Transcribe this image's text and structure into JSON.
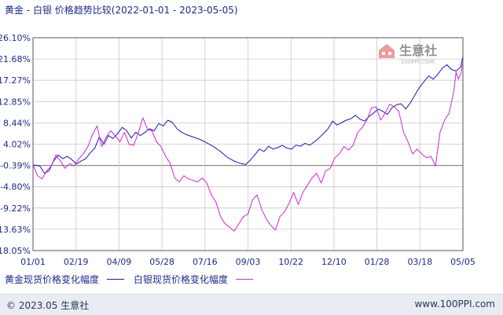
{
  "header": {
    "title": "黄金 - 白银 价格趋势比较(2022-01-01 - 2023-05-05)"
  },
  "watermark": {
    "cn": "生意社",
    "en": "100PPI.COM"
  },
  "legend": {
    "gold_label": "黄金现货价格变化幅度",
    "silver_label": "白银现货价格变化幅度"
  },
  "footer": {
    "copyright": "© 2023.05 生意社",
    "url": "www.100PPI.com"
  },
  "colors": {
    "gold": "#1a1aa8",
    "silver": "#d426d4",
    "grid": "#c8c8c8",
    "axis_text": "#1a2a8a"
  },
  "chart_data": {
    "type": "line",
    "x_tick_labels": [
      "01/01",
      "02/19",
      "04/09",
      "05/28",
      "07/16",
      "09/03",
      "10/22",
      "12/10",
      "01/28",
      "03/18",
      "05/05"
    ],
    "y_tick_labels": [
      "26.10%",
      "21.68%",
      "17.27%",
      "12.85%",
      "8.44%",
      "4.02%",
      "-0.39%",
      "-4.80%",
      "-9.22%",
      "-13.63%",
      "-18.05%"
    ],
    "ylim": [
      -18.05,
      26.1
    ],
    "grid": true,
    "legend_position": "bottom",
    "series": [
      {
        "name": "黄金现货价格变化幅度",
        "color": "#1a1aa8",
        "values": [
          [
            0,
            -0.3
          ],
          [
            3,
            -0.5
          ],
          [
            5,
            -2.0
          ],
          [
            7,
            -1.5
          ],
          [
            9,
            0.5
          ],
          [
            11,
            1.8
          ],
          [
            13,
            1.0
          ],
          [
            15,
            1.5
          ],
          [
            17,
            0.8
          ],
          [
            19,
            -0.1
          ],
          [
            21,
            0.5
          ],
          [
            23,
            1.0
          ],
          [
            25,
            2.2
          ],
          [
            27,
            3.2
          ],
          [
            29,
            5.5
          ],
          [
            31,
            4.0
          ],
          [
            33,
            5.8
          ],
          [
            35,
            5.2
          ],
          [
            37,
            6.2
          ],
          [
            39,
            7.5
          ],
          [
            41,
            6.8
          ],
          [
            43,
            5.3
          ],
          [
            45,
            6.5
          ],
          [
            47,
            5.8
          ],
          [
            49,
            6.5
          ],
          [
            51,
            7.2
          ],
          [
            53,
            6.8
          ],
          [
            55,
            8.3
          ],
          [
            57,
            7.8
          ],
          [
            59,
            9.0
          ],
          [
            61,
            8.5
          ],
          [
            63,
            7.2
          ],
          [
            65,
            6.5
          ],
          [
            67,
            6.0
          ],
          [
            70,
            5.5
          ],
          [
            73,
            5.0
          ],
          [
            76,
            4.3
          ],
          [
            79,
            3.5
          ],
          [
            82,
            2.5
          ],
          [
            85,
            1.3
          ],
          [
            88,
            0.5
          ],
          [
            91,
            0.0
          ],
          [
            93,
            -0.2
          ],
          [
            95,
            0.7
          ],
          [
            97,
            1.8
          ],
          [
            99,
            3.0
          ],
          [
            101,
            2.5
          ],
          [
            103,
            3.6
          ],
          [
            105,
            3.0
          ],
          [
            107,
            3.3
          ],
          [
            109,
            3.8
          ],
          [
            111,
            3.2
          ],
          [
            113,
            3.0
          ],
          [
            115,
            3.8
          ],
          [
            117,
            3.6
          ],
          [
            119,
            4.2
          ],
          [
            121,
            3.8
          ],
          [
            123,
            4.5
          ],
          [
            125,
            5.3
          ],
          [
            127,
            6.2
          ],
          [
            129,
            7.2
          ],
          [
            131,
            8.8
          ],
          [
            133,
            8.0
          ],
          [
            135,
            8.5
          ],
          [
            137,
            9.0
          ],
          [
            139,
            9.3
          ],
          [
            141,
            10.0
          ],
          [
            143,
            9.2
          ],
          [
            145,
            8.8
          ],
          [
            147,
            9.8
          ],
          [
            149,
            10.5
          ],
          [
            151,
            11.3
          ],
          [
            153,
            10.8
          ],
          [
            155,
            10.2
          ],
          [
            157,
            11.6
          ],
          [
            159,
            12.2
          ],
          [
            161,
            12.4
          ],
          [
            163,
            11.3
          ],
          [
            165,
            12.6
          ],
          [
            167,
            14.2
          ],
          [
            169,
            15.8
          ],
          [
            171,
            17.0
          ],
          [
            173,
            18.2
          ],
          [
            175,
            17.5
          ],
          [
            177,
            18.5
          ],
          [
            179,
            19.8
          ],
          [
            181,
            20.5
          ],
          [
            183,
            19.5
          ],
          [
            185,
            19.2
          ],
          [
            187,
            20.0
          ],
          [
            188,
            22.2
          ]
        ]
      },
      {
        "name": "白银现货价格变化幅度",
        "color": "#d426d4",
        "values": [
          [
            0,
            -0.3
          ],
          [
            2,
            -2.5
          ],
          [
            4,
            -3.2
          ],
          [
            6,
            -1.5
          ],
          [
            8,
            -0.5
          ],
          [
            10,
            1.8
          ],
          [
            12,
            0.5
          ],
          [
            14,
            -1.0
          ],
          [
            16,
            0.0
          ],
          [
            18,
            -0.5
          ],
          [
            20,
            1.0
          ],
          [
            22,
            2.0
          ],
          [
            24,
            3.5
          ],
          [
            26,
            6.0
          ],
          [
            28,
            7.8
          ],
          [
            30,
            3.5
          ],
          [
            32,
            5.5
          ],
          [
            34,
            6.8
          ],
          [
            36,
            5.8
          ],
          [
            38,
            4.5
          ],
          [
            40,
            6.5
          ],
          [
            42,
            4.0
          ],
          [
            44,
            3.8
          ],
          [
            46,
            6.2
          ],
          [
            48,
            9.5
          ],
          [
            50,
            7.2
          ],
          [
            52,
            6.8
          ],
          [
            54,
            4.5
          ],
          [
            56,
            3.5
          ],
          [
            58,
            1.5
          ],
          [
            60,
            0.0
          ],
          [
            62,
            -3.0
          ],
          [
            64,
            -3.8
          ],
          [
            66,
            -2.5
          ],
          [
            68,
            -3.2
          ],
          [
            70,
            -3.5
          ],
          [
            72,
            -3.8
          ],
          [
            74,
            -3.0
          ],
          [
            76,
            -4.0
          ],
          [
            78,
            -6.5
          ],
          [
            80,
            -8.0
          ],
          [
            82,
            -11.0
          ],
          [
            84,
            -12.5
          ],
          [
            86,
            -13.2
          ],
          [
            88,
            -14.0
          ],
          [
            90,
            -12.5
          ],
          [
            92,
            -11.0
          ],
          [
            94,
            -10.5
          ],
          [
            96,
            -7.5
          ],
          [
            98,
            -6.5
          ],
          [
            100,
            -9.5
          ],
          [
            102,
            -11.5
          ],
          [
            104,
            -12.8
          ],
          [
            106,
            -13.8
          ],
          [
            108,
            -11.0
          ],
          [
            110,
            -10.0
          ],
          [
            112,
            -8.2
          ],
          [
            114,
            -6.0
          ],
          [
            116,
            -8.5
          ],
          [
            118,
            -6.0
          ],
          [
            120,
            -4.5
          ],
          [
            122,
            -3.0
          ],
          [
            124,
            -2.0
          ],
          [
            126,
            -4.0
          ],
          [
            128,
            -1.5
          ],
          [
            130,
            -1.0
          ],
          [
            132,
            1.2
          ],
          [
            134,
            2.0
          ],
          [
            136,
            3.5
          ],
          [
            138,
            2.8
          ],
          [
            140,
            3.8
          ],
          [
            142,
            6.5
          ],
          [
            144,
            7.5
          ],
          [
            146,
            9.0
          ],
          [
            148,
            11.5
          ],
          [
            150,
            11.8
          ],
          [
            152,
            9.0
          ],
          [
            154,
            10.5
          ],
          [
            156,
            12.3
          ],
          [
            158,
            11.8
          ],
          [
            160,
            10.8
          ],
          [
            162,
            6.5
          ],
          [
            164,
            4.5
          ],
          [
            166,
            2.0
          ],
          [
            168,
            3.0
          ],
          [
            170,
            2.0
          ],
          [
            172,
            1.2
          ],
          [
            174,
            1.5
          ],
          [
            176,
            -0.5
          ],
          [
            178,
            6.5
          ],
          [
            180,
            9.0
          ],
          [
            182,
            10.5
          ],
          [
            184,
            15.0
          ],
          [
            185,
            19.0
          ],
          [
            186,
            17.5
          ],
          [
            187,
            18.5
          ],
          [
            188,
            21.0
          ]
        ]
      }
    ]
  }
}
